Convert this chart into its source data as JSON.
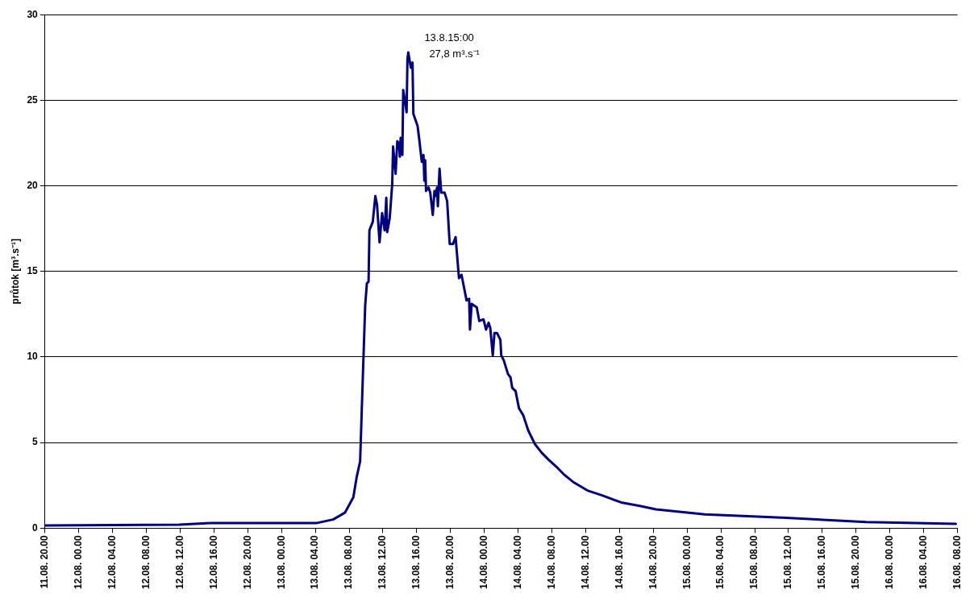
{
  "chart_data": {
    "type": "line",
    "ylabel": "průtok [m³.s⁻¹]",
    "annotations": [
      {
        "text": "13.8.15:00\n27,8 m³.s⁻¹",
        "x": "--08-13T15:00",
        "y": 27.8
      }
    ],
    "x": [
      "--08-11T20:00",
      "--08-12T11:54",
      "--08-12T15:42",
      "--08-13T04:12",
      "--08-13T06:06",
      "--08-13T07:30",
      "--08-13T08:30",
      "--08-13T08:54",
      "--08-13T09:18",
      "--08-13T09:36",
      "--08-13T09:54",
      "--08-13T10:06",
      "--08-13T10:18",
      "--08-13T10:24",
      "--08-13T10:48",
      "--08-13T11:06",
      "--08-13T11:18",
      "--08-13T11:36",
      "--08-13T11:54",
      "--08-13T12:12",
      "--08-13T12:24",
      "--08-13T12:30",
      "--08-13T12:48",
      "--08-13T13:06",
      "--08-13T13:12",
      "--08-13T13:30",
      "--08-13T13:42",
      "--08-13T13:54",
      "--08-13T14:00",
      "--08-13T14:06",
      "--08-13T14:18",
      "--08-13T14:24",
      "--08-13T14:36",
      "--08-13T14:48",
      "--08-13T14:54",
      "--08-13T15:00",
      "--08-13T15:18",
      "--08-13T15:30",
      "--08-13T15:36",
      "--08-13T16:06",
      "--08-13T16:18",
      "--08-13T16:36",
      "--08-13T16:48",
      "--08-13T16:54",
      "--08-13T17:00",
      "--08-13T17:06",
      "--08-13T17:24",
      "--08-13T17:36",
      "--08-13T17:54",
      "--08-13T18:06",
      "--08-13T18:12",
      "--08-13T18:24",
      "--08-13T18:30",
      "--08-13T18:42",
      "--08-13T18:54",
      "--08-13T19:18",
      "--08-13T19:36",
      "--08-13T19:54",
      "--08-13T20:18",
      "--08-13T20:36",
      "--08-13T20:42",
      "--08-13T21:00",
      "--08-13T21:18",
      "--08-13T21:54",
      "--08-13T22:12",
      "--08-13T22:18",
      "--08-13T22:30",
      "--08-13T22:48",
      "--08-13T23:06",
      "--08-13T23:24",
      "--08-13T23:54",
      "--08-14T00:12",
      "--08-14T00:30",
      "--08-14T00:42",
      "--08-14T01:00",
      "--08-14T01:12",
      "--08-14T01:30",
      "--08-14T01:54",
      "--08-14T02:00",
      "--08-14T02:18",
      "--08-14T02:48",
      "--08-14T03:06",
      "--08-14T03:18",
      "--08-14T03:42",
      "--08-14T04:06",
      "--08-14T04:36",
      "--08-14T05:12",
      "--08-14T06:00",
      "--08-14T06:48",
      "--08-14T07:36",
      "--08-14T08:42",
      "--08-14T09:30",
      "--08-14T10:30",
      "--08-14T12:12",
      "--08-14T14:00",
      "--08-14T16:12",
      "--08-14T18:24",
      "--08-14T20:18",
      "--08-15T02:06",
      "--08-15T11:42",
      "--08-15T21:12",
      "--08-16T07:48"
    ],
    "series": [
      {
        "color": "#000080",
        "values": [
          0.15,
          0.2,
          0.3,
          0.3,
          0.5,
          0.9,
          1.8,
          3.0,
          3.9,
          8.5,
          13,
          14.3,
          14.4,
          17.4,
          17.9,
          19.4,
          18.9,
          16.7,
          18.4,
          17.4,
          19.3,
          17.3,
          18.1,
          20.1,
          22.3,
          20.7,
          22.6,
          22.5,
          21.7,
          22.8,
          21.8,
          25.6,
          25.0,
          24.3,
          27.4,
          27.8,
          26.9,
          27.2,
          24.2,
          23.5,
          22.7,
          21.4,
          21.8,
          20.3,
          21.5,
          19.7,
          19.9,
          19.6,
          18.3,
          19.7,
          19.4,
          19.9,
          18.8,
          21.0,
          19.6,
          19.6,
          19.1,
          16.6,
          16.6,
          17.0,
          16.4,
          14.6,
          14.8,
          13.3,
          13.4,
          11.6,
          13.1,
          13.0,
          12.9,
          12.1,
          12.2,
          11.6,
          12.0,
          11.7,
          10.1,
          11.4,
          11.4,
          11.0,
          10.1,
          9.8,
          9.0,
          8.8,
          8.2,
          8.0,
          7.0,
          6.6,
          5.7,
          4.9,
          4.4,
          4.0,
          3.5,
          3.1,
          2.7,
          2.2,
          1.9,
          1.5,
          1.3,
          1.1,
          0.8,
          0.6,
          0.35,
          0.25
        ]
      }
    ],
    "xlim": [
      "--08-11T20:00",
      "--08-16T08:00"
    ],
    "xticks": [
      {
        "value": "--08-11T20:00",
        "label": "11.08. 20.00"
      },
      {
        "value": "--08-12T00:00",
        "label": "12.08. 00.00"
      },
      {
        "value": "--08-12T04:00",
        "label": "12.08. 04.00"
      },
      {
        "value": "--08-12T08:00",
        "label": "12.08. 08.00"
      },
      {
        "value": "--08-12T12:00",
        "label": "12.08. 12.00"
      },
      {
        "value": "--08-12T16:00",
        "label": "12.08. 16.00"
      },
      {
        "value": "--08-12T20:00",
        "label": "12.08. 20.00"
      },
      {
        "value": "--08-13T00:00",
        "label": "13.08. 00.00"
      },
      {
        "value": "--08-13T04:00",
        "label": "13.08. 04.00"
      },
      {
        "value": "--08-13T08:00",
        "label": "13.08. 08.00"
      },
      {
        "value": "--08-13T12:00",
        "label": "13.08. 12.00"
      },
      {
        "value": "--08-13T16:00",
        "label": "13.08. 16.00"
      },
      {
        "value": "--08-13T20:00",
        "label": "13.08. 20.00"
      },
      {
        "value": "--08-14T00:00",
        "label": "14.08. 00.00"
      },
      {
        "value": "--08-14T04:00",
        "label": "14.08. 04.00"
      },
      {
        "value": "--08-14T08:00",
        "label": "14.08. 08.00"
      },
      {
        "value": "--08-14T12:00",
        "label": "14.08. 12.00"
      },
      {
        "value": "--08-14T16:00",
        "label": "14.08. 16.00"
      },
      {
        "value": "--08-14T20:00",
        "label": "14.08. 20.00"
      },
      {
        "value": "--08-15T00:00",
        "label": "15.08. 00.00"
      },
      {
        "value": "--08-15T04:00",
        "label": "15.08. 04.00"
      },
      {
        "value": "--08-15T08:00",
        "label": "15.08. 08.00"
      },
      {
        "value": "--08-15T12:00",
        "label": "15.08. 12.00"
      },
      {
        "value": "--08-15T16:00",
        "label": "15.08. 16.00"
      },
      {
        "value": "--08-15T20:00",
        "label": "15.08. 20.00"
      },
      {
        "value": "--08-16T00:00",
        "label": "16.08. 00.00"
      },
      {
        "value": "--08-16T04:00",
        "label": "16.08. 04.00"
      },
      {
        "value": "--08-16T08:00",
        "label": "16.08. 08.00"
      }
    ],
    "ylim": [
      0,
      30
    ],
    "yticks": [
      0,
      5,
      10,
      15,
      20,
      25,
      30
    ],
    "grid": "y",
    "legend": false,
    "marker": "none",
    "line_style": "solid"
  }
}
